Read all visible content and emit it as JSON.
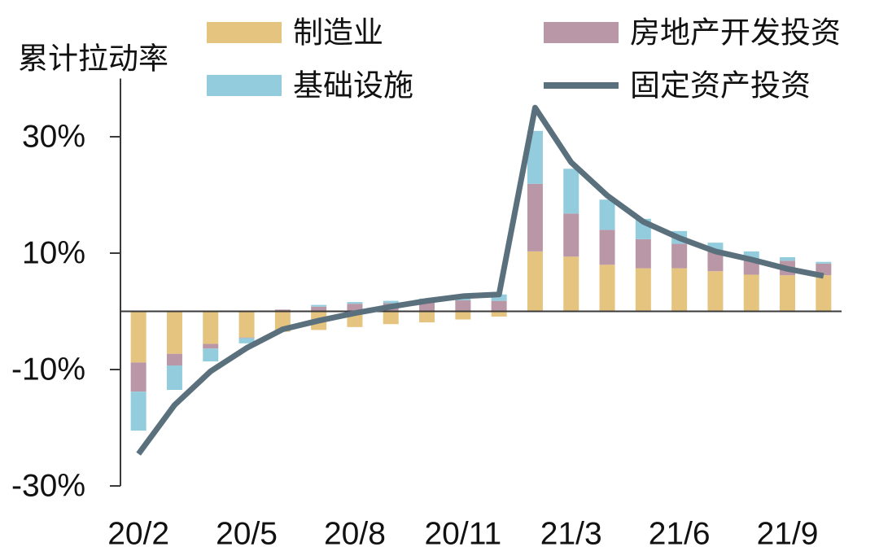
{
  "chart_data": {
    "type": "bar",
    "stacked": true,
    "ylabel": "累计拉动率",
    "categories": [
      "20/2",
      "",
      "",
      "20/5",
      "",
      "",
      "20/8",
      "",
      "",
      "20/11",
      "",
      "",
      "21/3",
      "",
      "",
      "21/6",
      "",
      "",
      "21/9",
      ""
    ],
    "ylim": [
      -30,
      40
    ],
    "y_ticks": [
      30,
      10,
      -10,
      -30
    ],
    "y_tick_labels": [
      "30%",
      "10%",
      "-10%",
      "-30%"
    ],
    "grid": false,
    "legend_position": "top",
    "series": [
      {
        "name": "制造业",
        "type": "bar",
        "color": "#E5C47F",
        "values": [
          -8.8,
          -7.3,
          -5.6,
          -4.5,
          -3.5,
          -3.2,
          -2.7,
          -2.2,
          -1.9,
          -1.4,
          -0.9,
          10.3,
          9.4,
          8.0,
          7.4,
          7.4,
          6.9,
          6.3,
          6.2,
          6.2
        ]
      },
      {
        "name": "房地产开发投资",
        "type": "bar",
        "color": "#BA97A7",
        "values": [
          -5.0,
          -2.0,
          -0.8,
          -0.1,
          0.3,
          0.8,
          1.3,
          1.4,
          1.8,
          1.9,
          1.8,
          11.6,
          7.4,
          6.0,
          5.0,
          4.2,
          3.6,
          2.7,
          2.5,
          2.0
        ]
      },
      {
        "name": "基础设施",
        "type": "bar",
        "color": "#93CDDD",
        "values": [
          -6.7,
          -4.2,
          -2.2,
          -0.9,
          0.0,
          0.3,
          0.3,
          0.4,
          0.4,
          0.3,
          1.1,
          9.1,
          7.7,
          5.2,
          3.5,
          2.2,
          1.3,
          1.3,
          0.6,
          0.3
        ]
      },
      {
        "name": "固定资产投资",
        "type": "line",
        "color": "#5A707D",
        "values": [
          -24.5,
          -16.1,
          -10.3,
          -6.3,
          -3.1,
          -1.6,
          -0.3,
          0.8,
          1.8,
          2.6,
          2.9,
          35.0,
          25.6,
          19.9,
          15.4,
          12.6,
          10.3,
          8.9,
          7.3,
          6.1
        ]
      }
    ]
  }
}
